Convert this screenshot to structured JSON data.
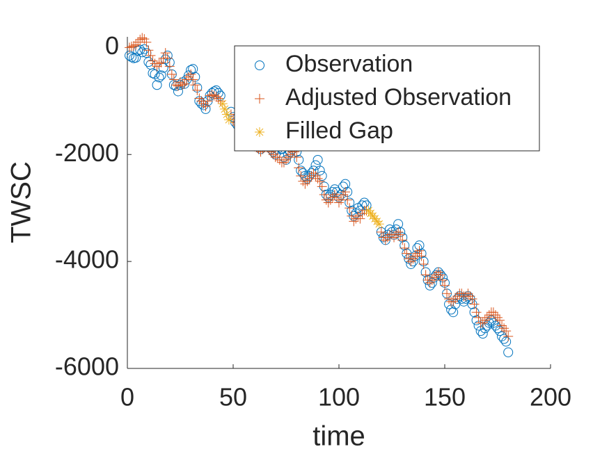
{
  "chart_data": {
    "type": "scatter",
    "x_label": "time",
    "y_label": "TWSC",
    "xlim": [
      0,
      200
    ],
    "xticks": [
      0,
      50,
      100,
      150,
      200
    ],
    "ylim": [
      -6000,
      200
    ],
    "yticks": [
      -6000,
      -4000,
      -2000,
      0
    ],
    "legend": "northeast",
    "x": [
      1,
      2,
      3,
      4,
      5,
      6,
      7,
      8,
      9,
      10,
      11,
      12,
      13,
      14,
      15,
      16,
      17,
      18,
      19,
      20,
      21,
      22,
      23,
      24,
      25,
      26,
      27,
      28,
      29,
      30,
      31,
      32,
      33,
      34,
      35,
      36,
      37,
      38,
      39,
      40,
      41,
      42,
      43,
      44,
      45,
      46,
      47,
      48,
      49,
      50,
      51,
      52,
      53,
      54,
      55,
      56,
      57,
      58,
      59,
      60,
      61,
      62,
      63,
      64,
      65,
      66,
      67,
      68,
      69,
      70,
      71,
      72,
      73,
      74,
      75,
      76,
      77,
      78,
      79,
      80,
      81,
      82,
      83,
      84,
      85,
      86,
      87,
      88,
      89,
      90,
      91,
      92,
      93,
      94,
      95,
      96,
      97,
      98,
      99,
      100,
      101,
      102,
      103,
      104,
      105,
      106,
      107,
      108,
      109,
      110,
      111,
      112,
      113,
      114,
      115,
      116,
      117,
      118,
      119,
      120,
      121,
      122,
      123,
      124,
      125,
      126,
      127,
      128,
      129,
      130,
      131,
      132,
      133,
      134,
      135,
      136,
      137,
      138,
      139,
      140,
      141,
      142,
      143,
      144,
      145,
      146,
      147,
      148,
      149,
      150,
      151,
      152,
      153,
      154,
      155,
      156,
      157,
      158,
      159,
      160,
      161,
      162,
      163,
      164,
      165,
      166,
      167,
      168,
      169,
      170,
      171,
      172,
      173,
      174,
      175,
      176,
      177,
      178,
      179,
      180
    ],
    "series": [
      {
        "name": "Observation",
        "marker": "o",
        "color": "#0072bd",
        "values": [
          -150,
          -180,
          -200,
          -190,
          -60,
          -40,
          -90,
          -30,
          -100,
          -270,
          -320,
          -480,
          -500,
          -700,
          -560,
          -520,
          -380,
          -220,
          -150,
          -280,
          -500,
          -700,
          -720,
          -820,
          -700,
          -650,
          -680,
          -600,
          -520,
          -420,
          -400,
          -550,
          -750,
          -1000,
          -1050,
          -1080,
          -1150,
          -1000,
          -900,
          -850,
          -820,
          -800,
          -850,
          -900,
          null,
          null,
          null,
          null,
          -1200,
          -1300,
          -1400,
          -1450,
          -1450,
          -1500,
          -1550,
          -1600,
          -1650,
          -1700,
          -1750,
          -1800,
          -1800,
          -1850,
          -1900,
          -1850,
          -1800,
          -1800,
          -1850,
          -1900,
          -1950,
          -2000,
          -1900,
          -1850,
          -1900,
          -2050,
          -2100,
          -2000,
          -1950,
          -1900,
          -1850,
          -1950,
          -2100,
          -2300,
          -2350,
          -2400,
          -2450,
          -2400,
          -2350,
          -2300,
          -2200,
          -2100,
          -2300,
          -2400,
          -2600,
          -2750,
          -2800,
          -2750,
          -2700,
          -2650,
          -2700,
          -2800,
          -2750,
          -2600,
          -2550,
          -2700,
          -2900,
          -3050,
          -3150,
          -3100,
          -3000,
          -3050,
          -2950,
          -2900,
          -2950,
          null,
          null,
          null,
          null,
          null,
          null,
          -3450,
          -3550,
          -3600,
          -3500,
          -3400,
          -3450,
          -3500,
          -3400,
          -3300,
          -3450,
          -3550,
          -3700,
          -3850,
          -3950,
          -4050,
          -4000,
          -3900,
          -3750,
          -3700,
          -3850,
          -4000,
          -4200,
          -4350,
          -4450,
          -4400,
          -4300,
          -4250,
          -4200,
          -4250,
          -4300,
          -4400,
          -4600,
          -4800,
          -4900,
          -4950,
          -4800,
          -4700,
          -4650,
          -4700,
          -4750,
          -4700,
          -4650,
          -4700,
          -4800,
          -4950,
          -5100,
          -5200,
          -5300,
          -5350,
          -5250,
          -5200,
          -5150,
          -5100,
          -5150,
          -5200,
          -5250,
          -5300,
          -5400,
          -5450,
          -5500,
          -5700
        ]
      },
      {
        "name": "Adjusted Observation",
        "marker": "+",
        "color": "#d95319",
        "values": [
          0,
          20,
          30,
          50,
          100,
          150,
          180,
          160,
          100,
          -50,
          -150,
          -250,
          -300,
          -350,
          -300,
          -280,
          -200,
          -100,
          -200,
          -350,
          -500,
          -600,
          -700,
          -720,
          -650,
          -700,
          -680,
          -600,
          -550,
          -500,
          -600,
          -700,
          -800,
          -950,
          -1000,
          -1050,
          -1100,
          -1000,
          -900,
          -880,
          -900,
          -920,
          -950,
          -1000,
          null,
          null,
          null,
          null,
          -1250,
          -1350,
          -1400,
          -1450,
          -1500,
          -1550,
          -1600,
          -1650,
          -1700,
          -1750,
          -1800,
          -1850,
          -1850,
          -1900,
          -1950,
          -1900,
          -1850,
          -1850,
          -1900,
          -1950,
          -2000,
          -2050,
          -2050,
          -2100,
          -2150,
          -2150,
          -2100,
          -2050,
          -2000,
          -1950,
          -1950,
          -2050,
          -2250,
          -2400,
          -2500,
          -2550,
          -2500,
          -2450,
          -2400,
          -2350,
          -2400,
          -2450,
          -2500,
          -2600,
          -2750,
          -2850,
          -2900,
          -2850,
          -2800,
          -2750,
          -2800,
          -2900,
          -2850,
          -2750,
          -2700,
          -2850,
          -3000,
          -3150,
          -3250,
          -3200,
          -3150,
          -3200,
          -3100,
          -3050,
          -3050,
          null,
          null,
          null,
          null,
          null,
          null,
          -3450,
          -3550,
          -3600,
          -3550,
          -3500,
          -3500,
          -3550,
          -3500,
          -3450,
          -3500,
          -3600,
          -3750,
          -3850,
          -3950,
          -4000,
          -3950,
          -3900,
          -3850,
          -3800,
          -3900,
          -4050,
          -4250,
          -4350,
          -4400,
          -4350,
          -4300,
          -4250,
          -4200,
          -4250,
          -4350,
          -4450,
          -4600,
          -4700,
          -4750,
          -4750,
          -4700,
          -4650,
          -4600,
          -4600,
          -4650,
          -4650,
          -4600,
          -4650,
          -4700,
          -4800,
          -4950,
          -5050,
          -5150,
          -5150,
          -5100,
          -5050,
          -5000,
          -4950,
          -4950,
          -5000,
          -5050,
          -5100,
          -5200,
          -5250,
          -5300,
          -5400
        ]
      },
      {
        "name": "Filled Gap",
        "marker": "*",
        "color": "#edb120",
        "x": [
          45,
          46,
          47,
          48,
          114,
          115,
          116,
          117,
          118,
          119
        ],
        "values": [
          -1050,
          -1150,
          -1250,
          -1350,
          -3050,
          -3100,
          -3150,
          -3200,
          -3250,
          -3300
        ]
      }
    ]
  }
}
